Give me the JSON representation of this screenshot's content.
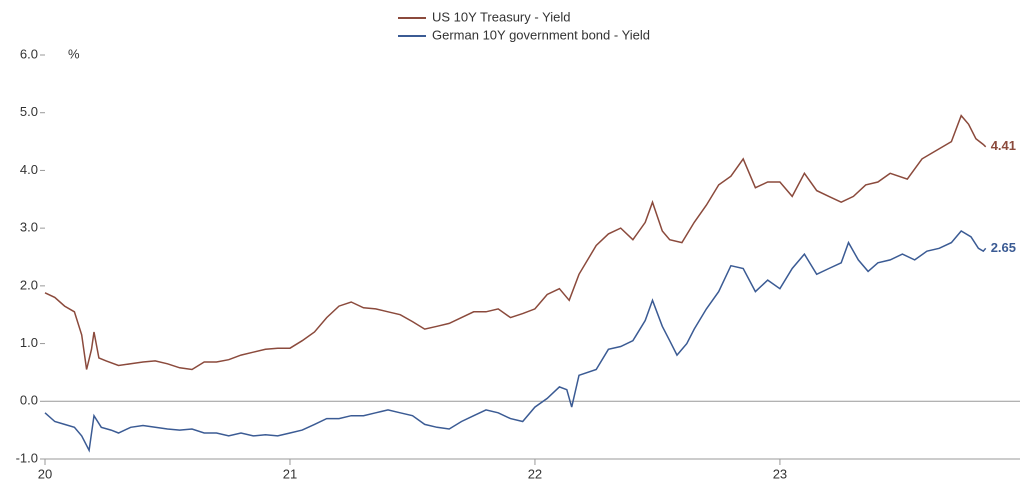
{
  "chart_data": {
    "type": "line",
    "y_label": "%",
    "xlim": [
      2020,
      2023.98
    ],
    "xticks": [
      {
        "value": 2020,
        "label": "20"
      },
      {
        "value": 2021,
        "label": "21"
      },
      {
        "value": 2022,
        "label": "22"
      },
      {
        "value": 2023,
        "label": "23"
      }
    ],
    "ylim": [
      -1,
      6
    ],
    "yticks": [
      {
        "value": -1,
        "label": "-1.0"
      },
      {
        "value": 0,
        "label": "0.0"
      },
      {
        "value": 1,
        "label": "1.0"
      },
      {
        "value": 2,
        "label": "2.0"
      },
      {
        "value": 3,
        "label": "3.0"
      },
      {
        "value": 4,
        "label": "4.0"
      },
      {
        "value": 5,
        "label": "5.0"
      },
      {
        "value": 6,
        "label": "6.0"
      }
    ],
    "legend": "top",
    "series": [
      {
        "name": "US 10Y Treasury - Yield",
        "color": "#8b4a3c",
        "x": [
          2020.0,
          2020.04,
          2020.08,
          2020.12,
          2020.15,
          2020.17,
          2020.19,
          2020.2,
          2020.22,
          2020.25,
          2020.3,
          2020.35,
          2020.4,
          2020.45,
          2020.5,
          2020.55,
          2020.6,
          2020.65,
          2020.7,
          2020.75,
          2020.8,
          2020.85,
          2020.9,
          2020.95,
          2021.0,
          2021.05,
          2021.1,
          2021.15,
          2021.2,
          2021.25,
          2021.3,
          2021.35,
          2021.4,
          2021.45,
          2021.5,
          2021.55,
          2021.6,
          2021.65,
          2021.7,
          2021.75,
          2021.8,
          2021.85,
          2021.9,
          2021.95,
          2022.0,
          2022.05,
          2022.1,
          2022.14,
          2022.18,
          2022.25,
          2022.3,
          2022.35,
          2022.4,
          2022.45,
          2022.48,
          2022.52,
          2022.55,
          2022.6,
          2022.65,
          2022.7,
          2022.75,
          2022.8,
          2022.85,
          2022.9,
          2022.95,
          2023.0,
          2023.05,
          2023.1,
          2023.15,
          2023.2,
          2023.25,
          2023.3,
          2023.35,
          2023.4,
          2023.45,
          2023.52,
          2023.58,
          2023.62,
          2023.7,
          2023.74,
          2023.77,
          2023.8,
          2023.83,
          2023.84
        ],
        "values": [
          1.88,
          1.8,
          1.65,
          1.55,
          1.15,
          0.55,
          0.9,
          1.2,
          0.75,
          0.7,
          0.62,
          0.65,
          0.68,
          0.7,
          0.65,
          0.58,
          0.55,
          0.68,
          0.68,
          0.72,
          0.8,
          0.85,
          0.9,
          0.92,
          0.92,
          1.05,
          1.2,
          1.45,
          1.65,
          1.72,
          1.62,
          1.6,
          1.55,
          1.5,
          1.38,
          1.25,
          1.3,
          1.35,
          1.45,
          1.55,
          1.55,
          1.6,
          1.45,
          1.52,
          1.6,
          1.85,
          1.95,
          1.75,
          2.2,
          2.7,
          2.9,
          3.0,
          2.8,
          3.1,
          3.45,
          2.95,
          2.8,
          2.75,
          3.1,
          3.4,
          3.75,
          3.9,
          4.2,
          3.7,
          3.8,
          3.8,
          3.55,
          3.95,
          3.65,
          3.55,
          3.45,
          3.55,
          3.75,
          3.8,
          3.95,
          3.85,
          4.2,
          4.3,
          4.5,
          4.95,
          4.8,
          4.55,
          4.45,
          4.41
        ]
      },
      {
        "name": "German 10Y government bond - Yield",
        "color": "#3b5b94",
        "x": [
          2020.0,
          2020.04,
          2020.08,
          2020.12,
          2020.15,
          2020.18,
          2020.2,
          2020.23,
          2020.27,
          2020.3,
          2020.35,
          2020.4,
          2020.45,
          2020.5,
          2020.55,
          2020.6,
          2020.65,
          2020.7,
          2020.75,
          2020.8,
          2020.85,
          2020.9,
          2020.95,
          2021.0,
          2021.05,
          2021.1,
          2021.15,
          2021.2,
          2021.25,
          2021.3,
          2021.35,
          2021.4,
          2021.45,
          2021.5,
          2021.55,
          2021.6,
          2021.65,
          2021.7,
          2021.75,
          2021.8,
          2021.85,
          2021.9,
          2021.95,
          2022.0,
          2022.05,
          2022.1,
          2022.13,
          2022.15,
          2022.18,
          2022.25,
          2022.3,
          2022.35,
          2022.4,
          2022.45,
          2022.48,
          2022.52,
          2022.55,
          2022.58,
          2022.62,
          2022.65,
          2022.7,
          2022.75,
          2022.8,
          2022.85,
          2022.9,
          2022.95,
          2023.0,
          2023.05,
          2023.1,
          2023.15,
          2023.2,
          2023.25,
          2023.28,
          2023.32,
          2023.36,
          2023.4,
          2023.45,
          2023.5,
          2023.55,
          2023.6,
          2023.65,
          2023.7,
          2023.74,
          2023.78,
          2023.81,
          2023.83,
          2023.84
        ],
        "values": [
          -0.2,
          -0.35,
          -0.4,
          -0.45,
          -0.6,
          -0.85,
          -0.25,
          -0.45,
          -0.5,
          -0.55,
          -0.45,
          -0.42,
          -0.45,
          -0.48,
          -0.5,
          -0.48,
          -0.55,
          -0.55,
          -0.6,
          -0.55,
          -0.6,
          -0.58,
          -0.6,
          -0.55,
          -0.5,
          -0.4,
          -0.3,
          -0.3,
          -0.25,
          -0.25,
          -0.2,
          -0.15,
          -0.2,
          -0.25,
          -0.4,
          -0.45,
          -0.48,
          -0.35,
          -0.25,
          -0.15,
          -0.2,
          -0.3,
          -0.35,
          -0.1,
          0.05,
          0.25,
          0.2,
          -0.1,
          0.45,
          0.55,
          0.9,
          0.95,
          1.05,
          1.4,
          1.75,
          1.3,
          1.05,
          0.8,
          1.0,
          1.25,
          1.6,
          1.9,
          2.35,
          2.3,
          1.9,
          2.1,
          1.95,
          2.3,
          2.55,
          2.2,
          2.3,
          2.4,
          2.75,
          2.45,
          2.25,
          2.4,
          2.45,
          2.55,
          2.45,
          2.6,
          2.65,
          2.75,
          2.95,
          2.85,
          2.65,
          2.6,
          2.65
        ]
      }
    ]
  }
}
